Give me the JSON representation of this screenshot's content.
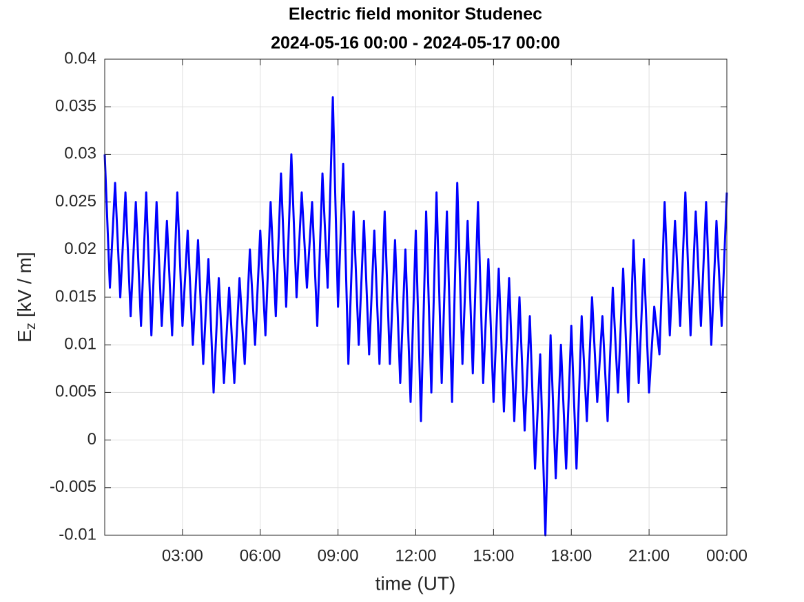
{
  "chart_data": {
    "type": "line",
    "title": "Electric field monitor Studenec",
    "subtitle": "2024-05-16 00:00 - 2024-05-17 00:00",
    "xlabel": "time (UT)",
    "ylabel": "E",
    "ylabel_sub": "z",
    "ylabel_unit": "[kV / m]",
    "x": [
      0,
      0.2,
      0.4,
      0.6,
      0.8,
      1,
      1.2,
      1.4,
      1.6,
      1.8,
      2,
      2.2,
      2.4,
      2.6,
      2.8,
      3,
      3.2,
      3.4,
      3.6,
      3.8,
      4,
      4.2,
      4.4,
      4.6,
      4.8,
      5,
      5.2,
      5.4,
      5.6,
      5.8,
      6,
      6.2,
      6.4,
      6.6,
      6.8,
      7,
      7.2,
      7.4,
      7.6,
      7.8,
      8,
      8.2,
      8.4,
      8.6,
      8.8,
      9,
      9.2,
      9.4,
      9.6,
      9.8,
      10,
      10.2,
      10.4,
      10.6,
      10.8,
      11,
      11.2,
      11.4,
      11.6,
      11.8,
      12,
      12.2,
      12.4,
      12.6,
      12.8,
      13,
      13.2,
      13.4,
      13.6,
      13.8,
      14,
      14.2,
      14.4,
      14.6,
      14.8,
      15,
      15.2,
      15.4,
      15.6,
      15.8,
      16,
      16.2,
      16.4,
      16.6,
      16.8,
      17,
      17.2,
      17.4,
      17.6,
      17.8,
      18,
      18.2,
      18.4,
      18.6,
      18.8,
      19,
      19.2,
      19.4,
      19.6,
      19.8,
      20,
      20.2,
      20.4,
      20.6,
      20.8,
      21,
      21.2,
      21.4,
      21.6,
      21.8,
      22,
      22.2,
      22.4,
      22.6,
      22.8,
      23,
      23.2,
      23.4,
      23.6,
      23.8,
      24
    ],
    "series": [
      {
        "name": "Ez",
        "color": "#0000ff",
        "values": [
          0.03,
          0.016,
          0.027,
          0.015,
          0.026,
          0.013,
          0.025,
          0.012,
          0.026,
          0.011,
          0.025,
          0.012,
          0.023,
          0.011,
          0.026,
          0.012,
          0.022,
          0.01,
          0.021,
          0.008,
          0.019,
          0.005,
          0.017,
          0.006,
          0.016,
          0.006,
          0.017,
          0.008,
          0.02,
          0.01,
          0.022,
          0.011,
          0.025,
          0.013,
          0.028,
          0.014,
          0.03,
          0.015,
          0.026,
          0.016,
          0.025,
          0.012,
          0.028,
          0.016,
          0.036,
          0.014,
          0.029,
          0.008,
          0.024,
          0.01,
          0.023,
          0.009,
          0.022,
          0.008,
          0.024,
          0.008,
          0.021,
          0.006,
          0.02,
          0.004,
          0.022,
          0.002,
          0.024,
          0.005,
          0.026,
          0.006,
          0.024,
          0.004,
          0.027,
          0.008,
          0.023,
          0.007,
          0.025,
          0.006,
          0.019,
          0.004,
          0.018,
          0.003,
          0.017,
          0.002,
          0.015,
          0.001,
          0.013,
          -0.003,
          0.009,
          -0.01,
          0.011,
          -0.004,
          0.01,
          -0.003,
          0.012,
          -0.003,
          0.013,
          0.002,
          0.015,
          0.004,
          0.013,
          0.002,
          0.016,
          0.005,
          0.018,
          0.004,
          0.021,
          0.006,
          0.019,
          0.005,
          0.014,
          0.009,
          0.025,
          0.011,
          0.023,
          0.012,
          0.026,
          0.011,
          0.024,
          0.012,
          0.025,
          0.01,
          0.023,
          0.012,
          0.026
        ]
      }
    ],
    "xlim": [
      0,
      24
    ],
    "xticks": [
      {
        "value": 3,
        "label": "03:00"
      },
      {
        "value": 6,
        "label": "06:00"
      },
      {
        "value": 9,
        "label": "09:00"
      },
      {
        "value": 12,
        "label": "12:00"
      },
      {
        "value": 15,
        "label": "15:00"
      },
      {
        "value": 18,
        "label": "18:00"
      },
      {
        "value": 21,
        "label": "21:00"
      },
      {
        "value": 24,
        "label": "00:00"
      }
    ],
    "ylim": [
      -0.01,
      0.04
    ],
    "yticks": [
      -0.01,
      -0.005,
      0,
      0.005,
      0.01,
      0.015,
      0.02,
      0.025,
      0.03,
      0.035,
      0.04
    ],
    "grid": true
  }
}
